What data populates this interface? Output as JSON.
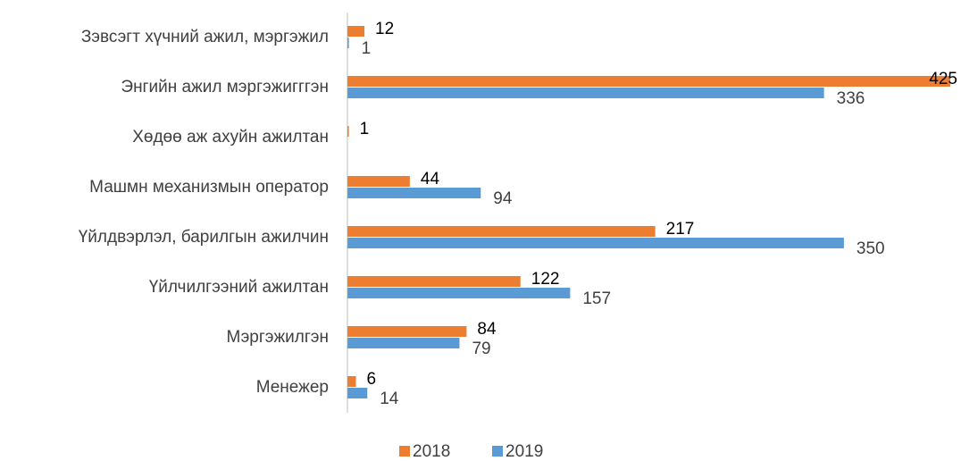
{
  "chart_data": {
    "type": "hbar",
    "categories": [
      "Зэвсэгт хүчний ажил, мэргэжил",
      "Энгийн ажил мэргэжигггэн",
      "Хөдөө аж ахуйн ажилтан",
      "Машмн механизмын оператор",
      "Үйлдвэрлэл, барилгын ажилчин",
      "Үйлчилгээний ажилтан",
      "Мэргэжилгэн",
      "Менежер"
    ],
    "series": [
      {
        "name": "2018",
        "color": "#ed7d31",
        "values": [
          12,
          425,
          1,
          44,
          217,
          122,
          84,
          6
        ]
      },
      {
        "name": "2019",
        "color": "#5b9bd5",
        "values": [
          1,
          336,
          null,
          94,
          350,
          157,
          79,
          14
        ]
      }
    ],
    "legend": "bottom"
  }
}
